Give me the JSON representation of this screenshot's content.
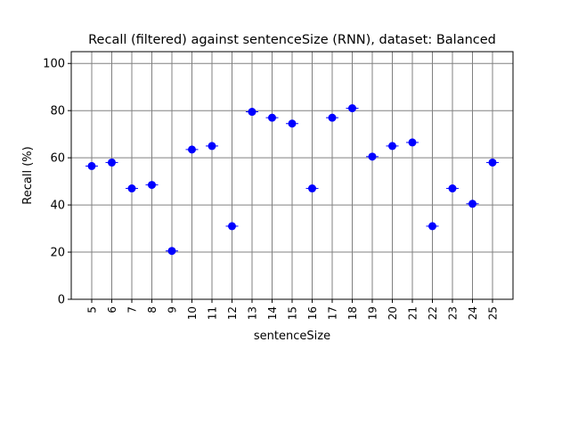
{
  "chart_data": {
    "type": "scatter",
    "title": "Recall (filtered) against sentenceSize (RNN), dataset: Balanced",
    "xlabel": "sentenceSize",
    "ylabel": "Recall (%)",
    "ylim": [
      0,
      105
    ],
    "yticks": [
      0,
      20,
      40,
      60,
      80,
      100
    ],
    "grid": true,
    "marker_color": "#0000ff",
    "grid_color": "#808080",
    "categories": [
      "5",
      "6",
      "7",
      "8",
      "9",
      "10",
      "11",
      "12",
      "13",
      "14",
      "15",
      "16",
      "17",
      "18",
      "19",
      "20",
      "21",
      "22",
      "23",
      "24",
      "25"
    ],
    "values": [
      56.5,
      58,
      47,
      48.5,
      20.5,
      63.5,
      65,
      31,
      79.5,
      77,
      74.5,
      47,
      77,
      81,
      60.5,
      65,
      66.5,
      31,
      47,
      40.5,
      58
    ]
  }
}
